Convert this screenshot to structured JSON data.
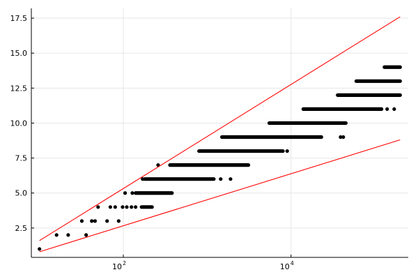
{
  "chart_data": {
    "type": "scatter",
    "title": "",
    "xlabel": "",
    "ylabel": "",
    "xscale": "log10",
    "xlim": [
      8,
      250000
    ],
    "ylim": [
      0.4,
      18.2
    ],
    "grid": true,
    "legend": "none",
    "x_ticks": [
      {
        "value": 100,
        "base": "10",
        "exp": "2"
      },
      {
        "value": 10000,
        "base": "10",
        "exp": "4"
      }
    ],
    "y_ticks": [
      {
        "value": 2.5,
        "label": "2.5"
      },
      {
        "value": 5.0,
        "label": "5.0"
      },
      {
        "value": 7.5,
        "label": "7.5"
      },
      {
        "value": 10.0,
        "label": "10.0"
      },
      {
        "value": 12.5,
        "label": "12.5"
      },
      {
        "value": 15.0,
        "label": "15.0"
      },
      {
        "value": 17.5,
        "label": "17.5"
      }
    ],
    "series": [
      {
        "kind": "points",
        "color": "#000000",
        "points": [
          {
            "x": 10,
            "y": 1
          },
          {
            "x": 16,
            "y": 2
          },
          {
            "x": 22,
            "y": 2
          },
          {
            "x": 36,
            "y": 2
          },
          {
            "x": 32,
            "y": 3
          },
          {
            "x": 42,
            "y": 3
          },
          {
            "x": 46,
            "y": 3
          },
          {
            "x": 64,
            "y": 3
          },
          {
            "x": 88,
            "y": 3
          },
          {
            "x": 50,
            "y": 4
          },
          {
            "x": 70,
            "y": 4
          },
          {
            "x": 80,
            "y": 4
          },
          {
            "x": 98,
            "y": 4
          },
          {
            "x": 110,
            "y": 4
          },
          {
            "x": 125,
            "y": 4
          },
          {
            "x": 140,
            "y": 4
          },
          {
            "x": 105,
            "y": 5
          },
          {
            "x": 128,
            "y": 5
          },
          {
            "x": 170,
            "y": 6
          },
          {
            "x": 260,
            "y": 7
          },
          {
            "x": 1900,
            "y": 6
          }
        ]
      },
      {
        "kind": "bands",
        "color": "#000000",
        "bands": [
          {
            "y": 4,
            "x_from": 165,
            "x_to": 220
          },
          {
            "y": 5,
            "x_from": 140,
            "x_to": 380
          },
          {
            "y": 6,
            "x_from": 180,
            "x_to": 1200
          },
          {
            "y": 7,
            "x_from": 360,
            "x_to": 3100
          },
          {
            "y": 8,
            "x_from": 800,
            "x_to": 7700
          },
          {
            "y": 9,
            "x_from": 1500,
            "x_to": 23000
          },
          {
            "y": 10,
            "x_from": 5500,
            "x_to": 45000
          },
          {
            "y": 11,
            "x_from": 14000,
            "x_to": 120000
          },
          {
            "y": 12,
            "x_from": 36000,
            "x_to": 200000
          },
          {
            "y": 13,
            "x_from": 60000,
            "x_to": 200000
          },
          {
            "y": 14,
            "x_from": 130000,
            "x_to": 200000
          }
        ],
        "extra_points": [
          {
            "x": 39000,
            "y": 9
          },
          {
            "x": 42000,
            "y": 9
          },
          {
            "x": 140000,
            "y": 11
          },
          {
            "x": 170000,
            "y": 11
          },
          {
            "x": 8000,
            "y": 8
          },
          {
            "x": 9000,
            "y": 8
          },
          {
            "x": 1450,
            "y": 6
          }
        ]
      },
      {
        "kind": "line",
        "color": "#ff0000",
        "points": [
          {
            "x": 10,
            "y": 1.6
          },
          {
            "x": 200000,
            "y": 17.6
          }
        ]
      },
      {
        "kind": "line",
        "color": "#ff0000",
        "points": [
          {
            "x": 10,
            "y": 0.8
          },
          {
            "x": 200000,
            "y": 8.8
          }
        ]
      }
    ]
  }
}
